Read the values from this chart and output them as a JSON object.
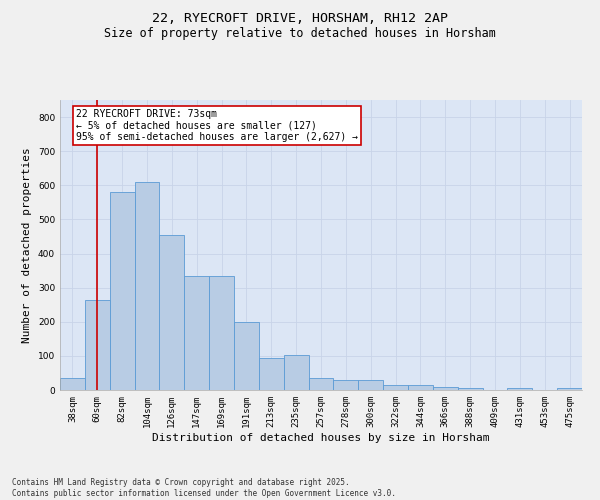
{
  "title1": "22, RYECROFT DRIVE, HORSHAM, RH12 2AP",
  "title2": "Size of property relative to detached houses in Horsham",
  "xlabel": "Distribution of detached houses by size in Horsham",
  "ylabel": "Number of detached properties",
  "categories": [
    "38sqm",
    "60sqm",
    "82sqm",
    "104sqm",
    "126sqm",
    "147sqm",
    "169sqm",
    "191sqm",
    "213sqm",
    "235sqm",
    "257sqm",
    "278sqm",
    "300sqm",
    "322sqm",
    "344sqm",
    "366sqm",
    "388sqm",
    "409sqm",
    "431sqm",
    "453sqm",
    "475sqm"
  ],
  "values": [
    35,
    265,
    580,
    610,
    455,
    335,
    335,
    200,
    95,
    103,
    35,
    30,
    30,
    15,
    15,
    10,
    5,
    1,
    5,
    1,
    5
  ],
  "bar_color": "#b8cce4",
  "bar_edge_color": "#5b9bd5",
  "vline_x": 1,
  "vline_color": "#cc0000",
  "annotation_text": "22 RYECROFT DRIVE: 73sqm\n← 5% of detached houses are smaller (127)\n95% of semi-detached houses are larger (2,627) →",
  "annotation_box_color": "#ffffff",
  "annotation_box_edge": "#cc0000",
  "ylim": [
    0,
    850
  ],
  "yticks": [
    0,
    100,
    200,
    300,
    400,
    500,
    600,
    700,
    800
  ],
  "grid_color": "#c8d4e8",
  "bg_color": "#dce6f5",
  "footer": "Contains HM Land Registry data © Crown copyright and database right 2025.\nContains public sector information licensed under the Open Government Licence v3.0.",
  "title_fontsize": 9.5,
  "subtitle_fontsize": 8.5,
  "tick_fontsize": 6.5,
  "ylabel_fontsize": 8,
  "xlabel_fontsize": 8,
  "annotation_fontsize": 7,
  "footer_fontsize": 5.5
}
